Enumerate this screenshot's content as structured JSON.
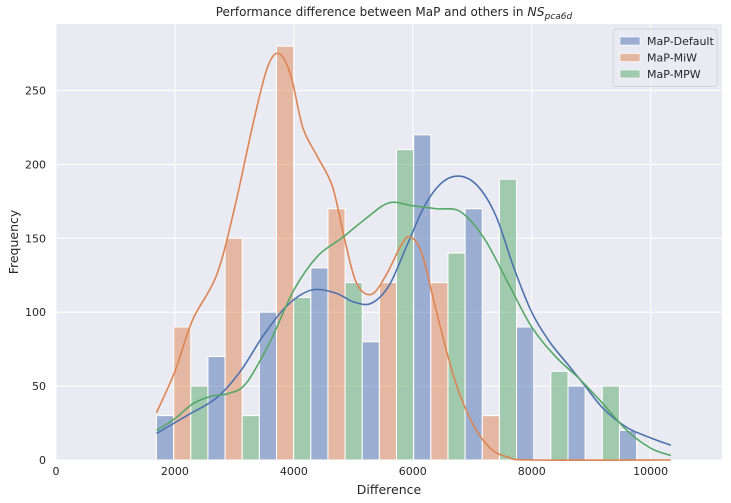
{
  "chart_data": {
    "type": "bar",
    "title_main": "Performance difference between MaP and others in ",
    "title_math": "NS",
    "title_sub": "pca6d",
    "xlabel": "Difference",
    "ylabel": "Frequency",
    "xlim": [
      0,
      11200
    ],
    "ylim": [
      0,
      295
    ],
    "xticks": [
      0,
      2000,
      4000,
      6000,
      8000,
      10000
    ],
    "yticks": [
      0,
      50,
      100,
      150,
      200,
      250
    ],
    "grid": true,
    "legend_position": "top-right",
    "bin_edges": [
      1690,
      2555,
      3420,
      4285,
      5150,
      6015,
      6880,
      7745,
      8610,
      9475,
      10340
    ],
    "series": [
      {
        "name": "MaP-Default",
        "color": "#4c72b0",
        "counts": [
          30,
          70,
          100,
          130,
          80,
          220,
          170,
          90,
          50,
          20
        ],
        "kde": [
          [
            1690,
            18
          ],
          [
            2200,
            30
          ],
          [
            2700,
            42
          ],
          [
            3100,
            60
          ],
          [
            3500,
            85
          ],
          [
            3900,
            105
          ],
          [
            4300,
            115
          ],
          [
            4700,
            113
          ],
          [
            5000,
            107
          ],
          [
            5300,
            106
          ],
          [
            5600,
            118
          ],
          [
            5900,
            145
          ],
          [
            6200,
            172
          ],
          [
            6500,
            188
          ],
          [
            6800,
            192
          ],
          [
            7100,
            185
          ],
          [
            7400,
            165
          ],
          [
            7700,
            130
          ],
          [
            8000,
            100
          ],
          [
            8300,
            80
          ],
          [
            8600,
            65
          ],
          [
            8900,
            50
          ],
          [
            9200,
            35
          ],
          [
            9600,
            22
          ],
          [
            10000,
            15
          ],
          [
            10340,
            10
          ]
        ]
      },
      {
        "name": "MaP-MiW",
        "color": "#dd8452",
        "counts": [
          90,
          150,
          280,
          170,
          120,
          120,
          30,
          0,
          0,
          0
        ],
        "kde": [
          [
            1690,
            32
          ],
          [
            2000,
            60
          ],
          [
            2300,
            95
          ],
          [
            2700,
            125
          ],
          [
            3000,
            170
          ],
          [
            3300,
            225
          ],
          [
            3550,
            265
          ],
          [
            3750,
            275
          ],
          [
            3950,
            260
          ],
          [
            4150,
            225
          ],
          [
            4400,
            205
          ],
          [
            4650,
            185
          ],
          [
            4850,
            150
          ],
          [
            5050,
            120
          ],
          [
            5300,
            112
          ],
          [
            5550,
            125
          ],
          [
            5800,
            145
          ],
          [
            5950,
            151
          ],
          [
            6150,
            140
          ],
          [
            6400,
            100
          ],
          [
            6700,
            55
          ],
          [
            7000,
            25
          ],
          [
            7300,
            8
          ],
          [
            7600,
            2
          ],
          [
            8000,
            0
          ],
          [
            10340,
            0
          ]
        ]
      },
      {
        "name": "MaP-MPW",
        "color": "#55a868",
        "counts": [
          50,
          30,
          110,
          120,
          210,
          140,
          190,
          60,
          50,
          0
        ],
        "kde": [
          [
            1690,
            20
          ],
          [
            2000,
            28
          ],
          [
            2300,
            38
          ],
          [
            2600,
            43
          ],
          [
            2900,
            45
          ],
          [
            3200,
            52
          ],
          [
            3600,
            80
          ],
          [
            4000,
            115
          ],
          [
            4400,
            138
          ],
          [
            4800,
            150
          ],
          [
            5200,
            163
          ],
          [
            5600,
            174
          ],
          [
            6000,
            172
          ],
          [
            6400,
            170
          ],
          [
            6800,
            168
          ],
          [
            7200,
            150
          ],
          [
            7600,
            120
          ],
          [
            8000,
            90
          ],
          [
            8400,
            70
          ],
          [
            8800,
            55
          ],
          [
            9200,
            38
          ],
          [
            9600,
            20
          ],
          [
            10000,
            8
          ],
          [
            10340,
            3
          ]
        ]
      }
    ]
  }
}
